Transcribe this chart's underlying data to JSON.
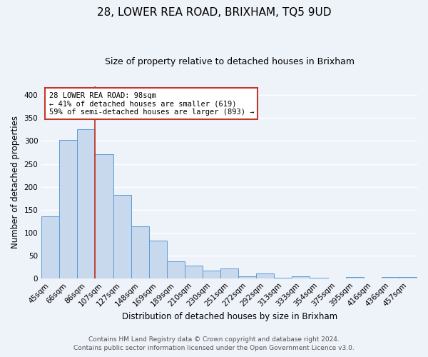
{
  "title": "28, LOWER REA ROAD, BRIXHAM, TQ5 9UD",
  "subtitle": "Size of property relative to detached houses in Brixham",
  "xlabel": "Distribution of detached houses by size in Brixham",
  "ylabel": "Number of detached properties",
  "bar_labels": [
    "45sqm",
    "66sqm",
    "86sqm",
    "107sqm",
    "127sqm",
    "148sqm",
    "169sqm",
    "189sqm",
    "210sqm",
    "230sqm",
    "251sqm",
    "272sqm",
    "292sqm",
    "313sqm",
    "333sqm",
    "354sqm",
    "375sqm",
    "395sqm",
    "416sqm",
    "436sqm",
    "457sqm"
  ],
  "bar_values": [
    135,
    302,
    325,
    271,
    182,
    113,
    83,
    37,
    27,
    17,
    22,
    5,
    11,
    1,
    5,
    1,
    0,
    2,
    0,
    2,
    3
  ],
  "bar_color": "#c8d9ee",
  "bar_edge_color": "#5b9bd5",
  "vline_position": 2.5,
  "vline_color": "#c0392b",
  "annotation_text_line1": "28 LOWER REA ROAD: 98sqm",
  "annotation_text_line2": "← 41% of detached houses are smaller (619)",
  "annotation_text_line3": "59% of semi-detached houses are larger (893) →",
  "annotation_box_color": "white",
  "annotation_box_edge": "#c0392b",
  "ylim": [
    0,
    420
  ],
  "yticks": [
    0,
    50,
    100,
    150,
    200,
    250,
    300,
    350,
    400
  ],
  "footer_line1": "Contains HM Land Registry data © Crown copyright and database right 2024.",
  "footer_line2": "Contains public sector information licensed under the Open Government Licence v3.0.",
  "background_color": "#eef2f9",
  "plot_bg_color": "#eef2f9",
  "grid_color": "white",
  "title_fontsize": 11,
  "subtitle_fontsize": 9,
  "axis_label_fontsize": 8.5,
  "tick_fontsize": 7.5,
  "annotation_fontsize": 7.5,
  "footer_fontsize": 6.5
}
